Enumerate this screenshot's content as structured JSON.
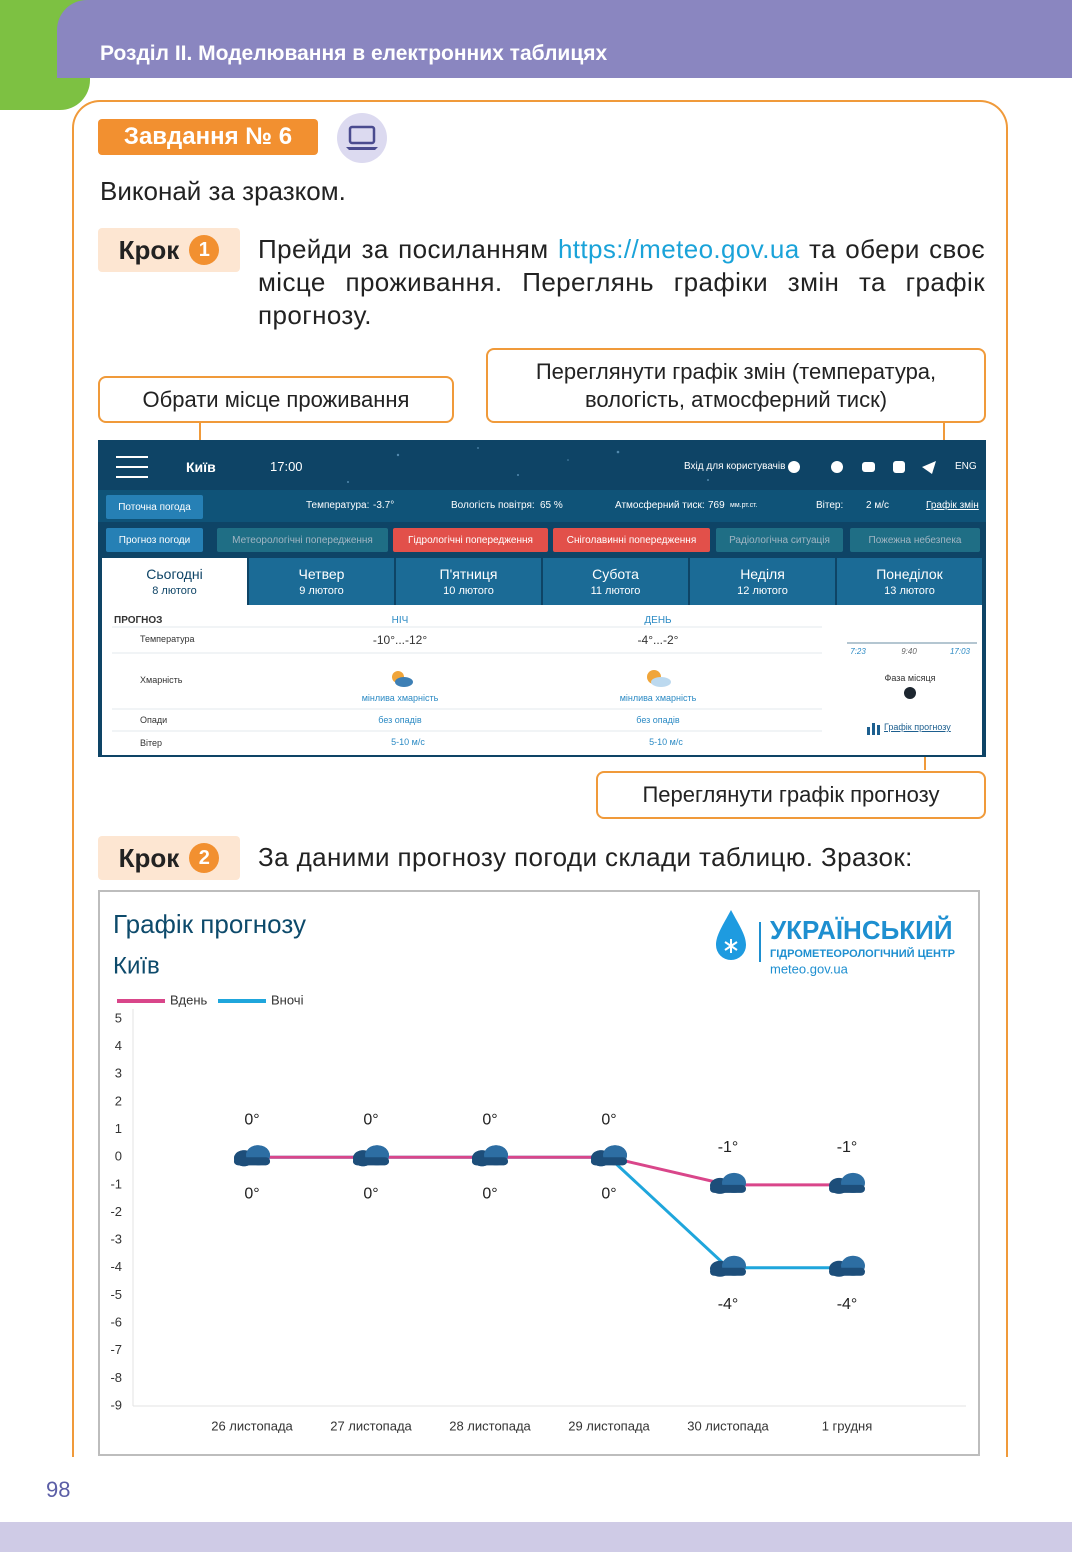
{
  "header": {
    "section": "Розділ ІІ. Моделювання в електронних таблицях"
  },
  "task": {
    "badge": "Завдання № 6",
    "instruction": "Виконай за зразком."
  },
  "steps": [
    {
      "label": "Крок",
      "number": "1",
      "text_before": "Прейди за посиланням",
      "link": "https://meteo.gov.ua",
      "text_after": "та обери своє місце проживання. Переглянь графіки змін та графік прогнозу."
    },
    {
      "label": "Крок",
      "number": "2",
      "text": "За даними прогнозу погоди склади таблицю. Зразок:"
    }
  ],
  "callouts": [
    "Обрати місце проживання",
    "Переглянути графік змін (температура, вологість, атмосферний тиск)",
    "Переглянути графік прогнозу"
  ],
  "screenshot": {
    "nav": {
      "city": "Київ",
      "time": "17:00",
      "login": "Вхід для користувачів",
      "lang": "ENG"
    },
    "current": {
      "label": "Поточна погода",
      "temperature_label": "Температура:",
      "temperature": "-3.7°",
      "humidity_label": "Вологість повітря:",
      "humidity": "65 %",
      "pressure_label": "Атмосферний тиск:",
      "pressure": "769",
      "pressure_unit": "мм.рт.ст.",
      "wind_label": "Вітер:",
      "wind": "2 м/с",
      "changes_link": "Графік змін"
    },
    "tabs": [
      "Прогноз погоди",
      "Метеорологічні попередження",
      "Гідрологічні попередження",
      "Сніголавинні попередження",
      "Радіологічна ситуація",
      "Пожежна небезпека"
    ],
    "days": [
      {
        "name": "Сьогодні",
        "date": "8 лютого"
      },
      {
        "name": "Четвер",
        "date": "9 лютого"
      },
      {
        "name": "П'ятниця",
        "date": "10 лютого"
      },
      {
        "name": "Субота",
        "date": "11 лютого"
      },
      {
        "name": "Неділя",
        "date": "12 лютого"
      },
      {
        "name": "Понеділок",
        "date": "13 лютого"
      }
    ],
    "forecast": {
      "heading": "ПРОГНОЗ",
      "night": "НІЧ",
      "day": "ДЕНЬ",
      "rows": [
        {
          "label": "Температура",
          "night": "-10°...-12°",
          "day": "-4°...-2°"
        },
        {
          "label": "Хмарність",
          "night": "мінлива хмарність",
          "day": "мінлива хмарність"
        },
        {
          "label": "Опади",
          "night": "без опадів",
          "day": "без опадів"
        },
        {
          "label": "Вітер",
          "night": "5-10 м/с",
          "day": "5-10 м/с"
        }
      ]
    },
    "sun": {
      "times": [
        "7:23",
        "9:40",
        "17:03"
      ],
      "moon_phase": "Фаза місяця",
      "forecast_link": "Графік прогнозу"
    }
  },
  "chart_data": {
    "type": "line",
    "title": "Графік прогнозу",
    "subtitle": "Київ",
    "logo": {
      "name": "УКРАЇНСЬКИЙ",
      "subname": "ГІДРОМЕТЕОРОЛОГІЧНИЙ ЦЕНТР",
      "site": "meteo.gov.ua"
    },
    "categories": [
      "26 листопада",
      "27 листопада",
      "28 листопада",
      "29 листопада",
      "30 листопада",
      "1 грудня"
    ],
    "series": [
      {
        "name": "Вдень",
        "color": "#d9468a",
        "values": [
          0,
          0,
          0,
          0,
          -1,
          -1
        ],
        "value_labels": [
          "0°",
          "0°",
          "0°",
          "0°",
          "-1°",
          "-1°"
        ]
      },
      {
        "name": "Вночі",
        "color": "#1fa6dc",
        "values": [
          0,
          0,
          0,
          0,
          -4,
          -4
        ],
        "value_labels": [
          "0°",
          "0°",
          "0°",
          "0°",
          "-4°",
          "-4°"
        ]
      }
    ],
    "ylim": [
      -9,
      5
    ],
    "yticks": [
      -9,
      -8,
      -7,
      -6,
      -5,
      -4,
      -3,
      -2,
      -1,
      0,
      1,
      2,
      3,
      4,
      5
    ],
    "grid": false,
    "legend": "top-left"
  },
  "page_number": 98
}
